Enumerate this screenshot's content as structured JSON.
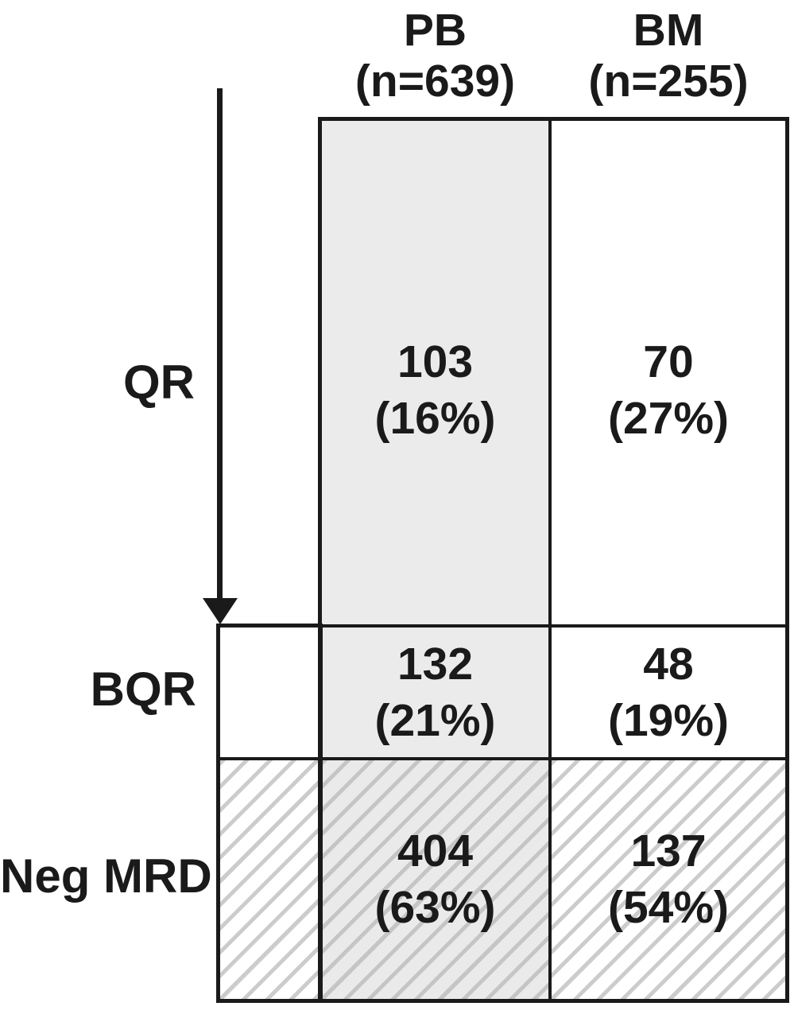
{
  "figure": {
    "columns": [
      {
        "label": "PB",
        "n_label": "(n=639)"
      },
      {
        "label": "BM",
        "n_label": "(n=255)"
      }
    ],
    "rows": [
      {
        "label": "QR",
        "cells": [
          {
            "count": "103",
            "pct": "(16%)"
          },
          {
            "count": "70",
            "pct": "(27%)"
          }
        ]
      },
      {
        "label": "BQR",
        "cells": [
          {
            "count": "132",
            "pct": "(21%)"
          },
          {
            "count": "48",
            "pct": "(19%)"
          }
        ]
      },
      {
        "label": "Neg MRD",
        "cells": [
          {
            "count": "404",
            "pct": "(63%)"
          },
          {
            "count": "137",
            "pct": "(54%)"
          }
        ]
      }
    ],
    "colors": {
      "shaded_fill": "#ebebeb",
      "line": "#1a1a1a",
      "hatch_line": "#c9c9c9"
    }
  },
  "chart_data": {
    "type": "table",
    "columns": [
      "PB (n=639)",
      "BM (n=255)"
    ],
    "rows": [
      "QR",
      "BQR",
      "Neg MRD"
    ],
    "series": [
      {
        "name": "PB",
        "n": 639,
        "values": [
          103,
          132,
          404
        ],
        "percents": [
          16,
          21,
          63
        ]
      },
      {
        "name": "BM",
        "n": 255,
        "values": [
          70,
          48,
          137
        ],
        "percents": [
          27,
          19,
          54
        ]
      }
    ]
  }
}
